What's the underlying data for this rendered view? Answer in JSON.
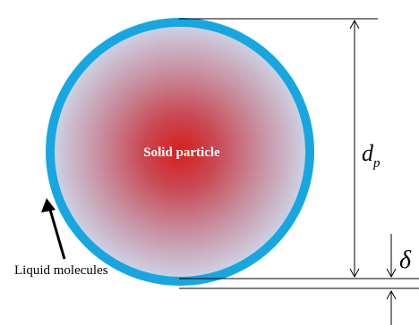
{
  "particle_label": "Solid particle",
  "liquid_label": "Liquid molecules",
  "diameter_symbol": "d",
  "diameter_subscript": "p",
  "thickness_symbol": "δ",
  "colors": {
    "particle_center": "#d81e1e",
    "particle_mid": "#c37a8a",
    "particle_edge": "#cdd0e2",
    "liquid_layer": "#17a7e0",
    "lines": "#000000",
    "text_light": "#ffffff"
  }
}
